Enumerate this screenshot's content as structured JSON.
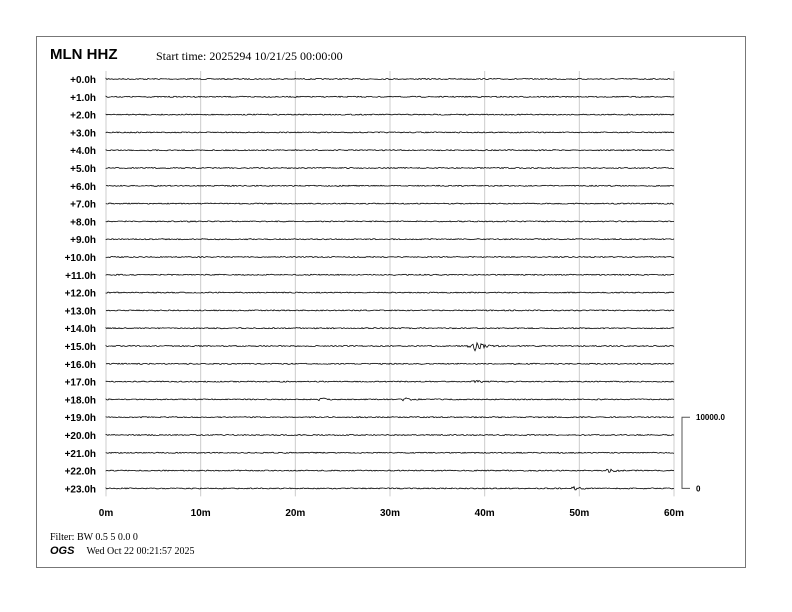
{
  "header": {
    "station": "MLN HHZ",
    "start_time": "Start time: 2025294 10/21/25 00:00:00"
  },
  "footer": {
    "filter": "Filter: BW 0.5 5 0.0 0",
    "logo": "OGS",
    "timestamp": "Wed Oct 22 00:21:57 2025"
  },
  "chart_data": {
    "type": "line",
    "row_labels": [
      "+0.0h",
      "+1.0h",
      "+2.0h",
      "+3.0h",
      "+4.0h",
      "+5.0h",
      "+6.0h",
      "+7.0h",
      "+8.0h",
      "+9.0h",
      "+10.0h",
      "+11.0h",
      "+12.0h",
      "+13.0h",
      "+14.0h",
      "+15.0h",
      "+16.0h",
      "+17.0h",
      "+18.0h",
      "+19.0h",
      "+20.0h",
      "+21.0h",
      "+22.0h",
      "+23.0h"
    ],
    "x_ticks": [
      "0m",
      "10m",
      "20m",
      "30m",
      "40m",
      "50m",
      "60m"
    ],
    "xlim": [
      0,
      60
    ],
    "grid": true,
    "trace_color": "#000000",
    "grid_color": "#cccccc",
    "scale_bar": {
      "top_label": "10000.0",
      "bottom_label": "0"
    },
    "events": [
      {
        "row": 15,
        "minute": 38.8,
        "amplitude": "large"
      },
      {
        "row": 18,
        "minute": 22.6,
        "amplitude": "small"
      },
      {
        "row": 18,
        "minute": 31.5,
        "amplitude": "small"
      },
      {
        "row": 17,
        "minute": 38.8,
        "amplitude": "small"
      },
      {
        "row": 22,
        "minute": 53.2,
        "amplitude": "small"
      },
      {
        "row": 23,
        "minute": 49.5,
        "amplitude": "small"
      }
    ]
  }
}
